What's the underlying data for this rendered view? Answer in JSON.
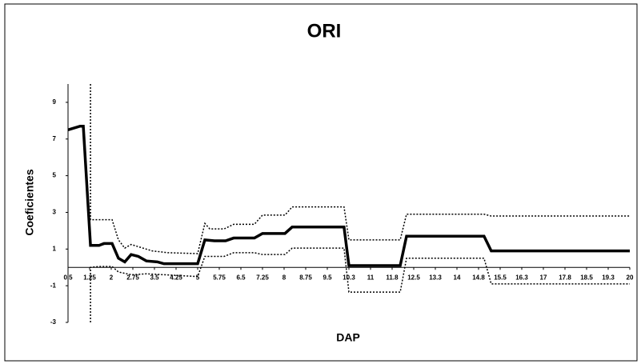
{
  "chart_data": {
    "type": "line",
    "title": "ORI",
    "x_label": "DAP",
    "y_label": "Coeficientes",
    "xlim": [
      0.5,
      20
    ],
    "ylim": [
      -3,
      10
    ],
    "xticks": [
      0.5,
      1.25,
      2,
      2.75,
      3.5,
      4.25,
      5,
      5.75,
      6.5,
      7.25,
      8,
      8.75,
      9.5,
      {
        "value": 10.25,
        "label": "10.3"
      },
      11,
      {
        "value": 11.75,
        "label": "11.8"
      },
      12.5,
      {
        "value": 13.25,
        "label": "13.3"
      },
      14,
      {
        "value": 14.75,
        "label": "14.8"
      },
      15.5,
      {
        "value": 16.25,
        "label": "16.3"
      },
      17,
      {
        "value": 17.75,
        "label": "17.8"
      },
      18.5,
      {
        "value": 19.25,
        "label": "19.3"
      },
      20
    ],
    "yticks": [
      -3,
      -1,
      1,
      3,
      5,
      7,
      9
    ],
    "series": [
      {
        "color": "#000000",
        "style": "solid",
        "x": [
          0.5,
          0.92,
          1.03,
          1.28,
          1.58,
          1.75,
          2.03,
          2.25,
          2.47,
          2.69,
          2.94,
          3.22,
          3.6,
          3.83,
          4.36,
          4.67,
          5.0,
          5.25,
          5.58,
          5.97,
          6.25,
          6.97,
          7.25,
          8.03,
          8.28,
          10.08,
          10.25,
          12.03,
          12.25,
          14.94,
          15.19,
          20
        ],
        "values": [
          7.5,
          7.7,
          7.7,
          1.2,
          1.2,
          1.3,
          1.3,
          0.5,
          0.3,
          0.7,
          0.6,
          0.35,
          0.3,
          0.2,
          0.2,
          0.2,
          0.2,
          1.5,
          1.45,
          1.45,
          1.6,
          1.6,
          1.85,
          1.85,
          2.2,
          2.2,
          0.1,
          0.1,
          1.7,
          1.7,
          0.9,
          0.9
        ]
      },
      {
        "color": "#000000",
        "style": "dotted",
        "x": [
          1.28,
          1.28,
          2.03,
          2.25,
          2.47,
          2.69,
          3.0,
          3.42,
          3.97,
          5.0,
          5.25,
          5.42,
          5.92,
          6.25,
          6.97,
          7.25,
          8.03,
          8.28,
          10.08,
          10.25,
          12.03,
          12.25,
          14.94,
          15.19,
          20
        ],
        "values": [
          10,
          2.6,
          2.6,
          1.5,
          1.05,
          1.25,
          1.1,
          0.9,
          0.8,
          0.75,
          2.4,
          2.1,
          2.1,
          2.35,
          2.35,
          2.85,
          2.85,
          3.3,
          3.3,
          1.5,
          1.5,
          2.9,
          2.9,
          2.8,
          2.8
        ]
      },
      {
        "color": "#000000",
        "style": "dotted",
        "x": [
          1.28,
          1.28,
          1.58,
          2.03,
          2.25,
          2.69,
          3.22,
          3.83,
          5.0,
          5.25,
          5.92,
          6.25,
          6.97,
          7.25,
          8.03,
          8.28,
          10.08,
          10.25,
          12.03,
          12.25,
          14.94,
          15.19,
          20
        ],
        "values": [
          -3,
          0,
          0.05,
          0.05,
          -0.25,
          -0.4,
          -0.35,
          -0.4,
          -0.5,
          0.6,
          0.6,
          0.8,
          0.8,
          0.7,
          0.7,
          1.05,
          1.05,
          -1.35,
          -1.35,
          0.5,
          0.5,
          -0.9,
          -0.9
        ]
      }
    ]
  }
}
